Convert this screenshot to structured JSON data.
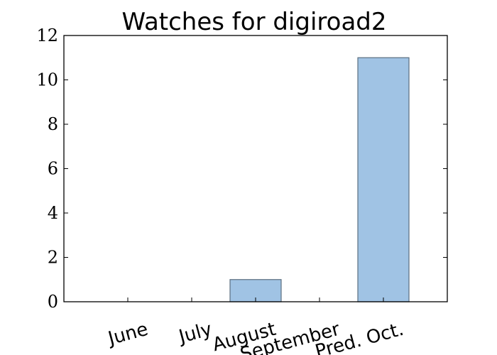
{
  "chart_data": {
    "type": "bar",
    "title": "Watches for digiroad2",
    "categories": [
      "June",
      "July",
      "August",
      "September",
      "Pred. Oct."
    ],
    "values": [
      0,
      0,
      1,
      0,
      11
    ],
    "xlabel": "",
    "ylabel": "",
    "ylim": [
      0,
      12
    ],
    "yticks": [
      "0",
      "2",
      "4",
      "6",
      "8",
      "10",
      "12"
    ],
    "grid": false,
    "colors": {
      "bar_fill": "#a0c3e4",
      "bar_edge": "#5a6e80",
      "axis": "#000000"
    }
  }
}
